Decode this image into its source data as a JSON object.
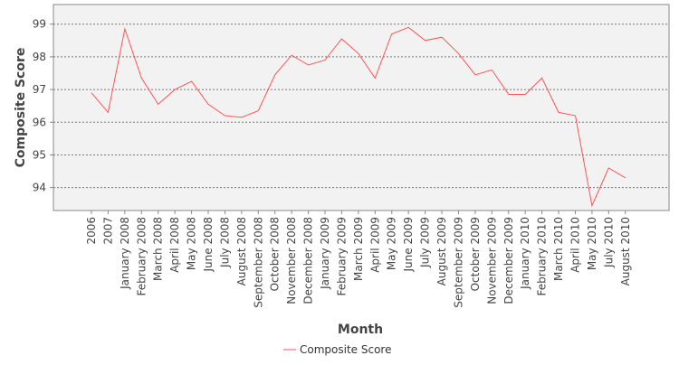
{
  "chart_data": {
    "type": "line",
    "title": "",
    "xlabel": "Month",
    "ylabel": "Composite Score",
    "ylim": [
      93.3,
      99.6
    ],
    "yticks": [
      94,
      95,
      96,
      97,
      98,
      99
    ],
    "grid": true,
    "legend_position": "bottom",
    "categories": [
      "2006",
      "2007",
      "January 2008",
      "February 2008",
      "March 2008",
      "April 2008",
      "May 2008",
      "June 2008",
      "July 2008",
      "August 2008",
      "September 2008",
      "October 2008",
      "November 2008",
      "December 2008",
      "January 2009",
      "February 2009",
      "March 2009",
      "April 2009",
      "May 2009",
      "June 2009",
      "July 2009",
      "August 2009",
      "September 2009",
      "October 2009",
      "November 2009",
      "December 2009",
      "January 2010",
      "February 2010",
      "March 2010",
      "April 2010",
      "May 2010",
      "July 2010",
      "August 2010"
    ],
    "series": [
      {
        "name": "Composite Score",
        "color": "#ff5555",
        "values": [
          96.9,
          96.3,
          98.85,
          97.35,
          96.55,
          97.0,
          97.25,
          96.55,
          96.2,
          96.15,
          96.35,
          97.45,
          98.05,
          97.75,
          97.9,
          98.55,
          98.1,
          97.35,
          98.7,
          98.9,
          98.5,
          98.6,
          98.1,
          97.45,
          97.6,
          96.85,
          96.85,
          97.35,
          96.3,
          96.2,
          93.45,
          94.6,
          94.3
        ]
      }
    ],
    "colors": {
      "plot_background": "#f2f2f2",
      "grid": "#777777",
      "axis": "#888888",
      "text": "#444444"
    }
  }
}
